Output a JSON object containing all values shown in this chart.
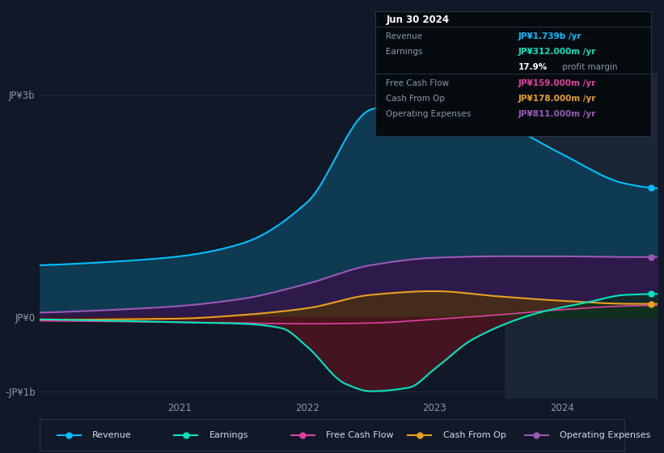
{
  "bg_color": "#111827",
  "plot_bg_color": "#111827",
  "grid_color": "#1e2d3d",
  "revenue_color": "#00bfff",
  "revenue_fill": "#0e3a52",
  "earnings_color": "#00e5c0",
  "earnings_fill_neg": "#4a1520",
  "opex_color": "#9b59b6",
  "opex_fill": "#2d1a4a",
  "cashfromop_color": "#e8a020",
  "cashfromop_fill": "#4a3010",
  "fcf_color": "#e040a0",
  "fcf_fill": "#4a1030",
  "highlight_color": "#1a2535",
  "ylabel_top": "JP¥3b",
  "ylabel_zero": "JP¥0",
  "ylabel_bottom": "-JP¥1b",
  "legend": [
    {
      "label": "Revenue",
      "color": "#00bfff"
    },
    {
      "label": "Earnings",
      "color": "#00e5c0"
    },
    {
      "label": "Free Cash Flow",
      "color": "#e040a0"
    },
    {
      "label": "Cash From Op",
      "color": "#e8a020"
    },
    {
      "label": "Operating Expenses",
      "color": "#9b59b6"
    }
  ],
  "tooltip_bg": "#050a0f",
  "tooltip_border": "#2a3447",
  "tooltip_title": "Jun 30 2024",
  "tooltip_rows": [
    {
      "label": "Revenue",
      "value": "JP¥1.739b /yr",
      "color": "#00bfff"
    },
    {
      "label": "Earnings",
      "value": "JP¥312.000m /yr",
      "color": "#00e5c0"
    },
    {
      "label": "",
      "value": "17.9% profit margin",
      "color": "#ffffff",
      "bold_prefix": "17.9%",
      "suffix": " profit margin"
    },
    {
      "label": "Free Cash Flow",
      "value": "JP¥159.000m /yr",
      "color": "#e040a0"
    },
    {
      "label": "Cash From Op",
      "value": "JP¥178.000m /yr",
      "color": "#e8a020"
    },
    {
      "label": "Operating Expenses",
      "value": "JP¥811.000m /yr",
      "color": "#9b59b6"
    }
  ]
}
